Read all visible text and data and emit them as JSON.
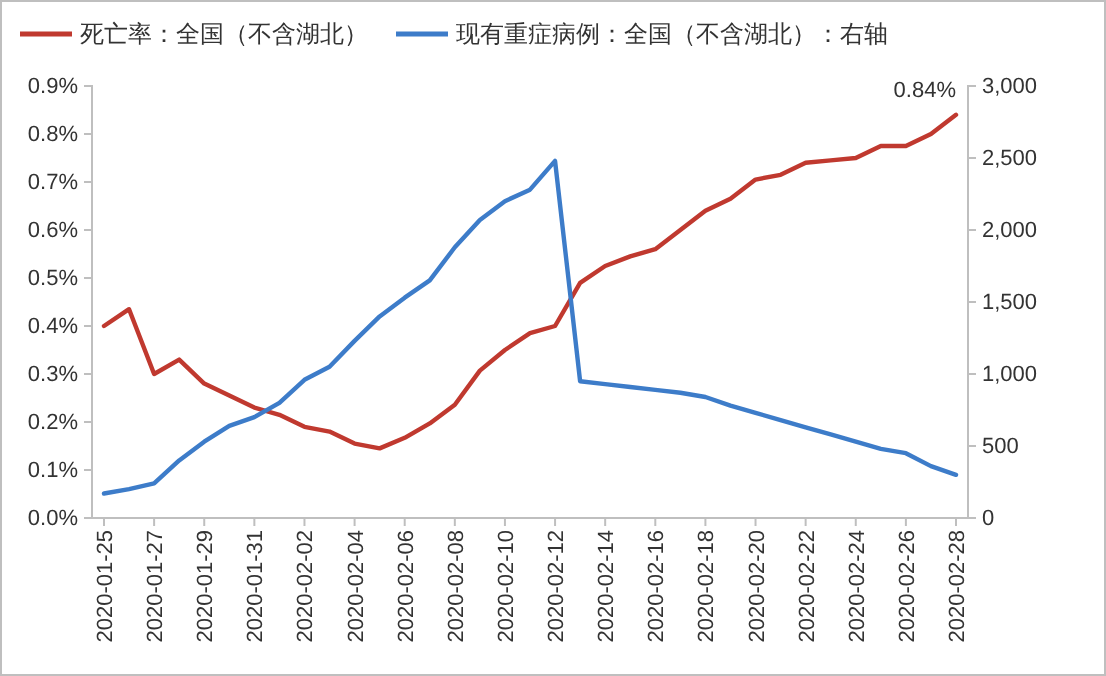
{
  "chart_data": {
    "type": "line",
    "categories": [
      "2020-01-25",
      null,
      "2020-01-27",
      null,
      "2020-01-29",
      null,
      "2020-01-31",
      null,
      "2020-02-02",
      null,
      "2020-02-04",
      null,
      "2020-02-06",
      null,
      "2020-02-08",
      null,
      "2020-02-10",
      null,
      "2020-02-12",
      null,
      "2020-02-14",
      null,
      "2020-02-16",
      null,
      "2020-02-18",
      null,
      "2020-02-20",
      null,
      "2020-02-22",
      null,
      "2020-02-24",
      null,
      "2020-02-26",
      null,
      "2020-02-28"
    ],
    "series": [
      {
        "name": "死亡率：全国（不含湖北）",
        "color": "#c0392f",
        "values": [
          0.4,
          0.435,
          0.3,
          0.33,
          0.28,
          0.255,
          0.23,
          0.215,
          0.19,
          0.18,
          0.155,
          0.145,
          0.167,
          0.197,
          0.236,
          0.307,
          0.35,
          0.385,
          0.4,
          0.49,
          0.525,
          0.545,
          0.56,
          0.6,
          0.64,
          0.665,
          0.705,
          0.715,
          0.74,
          0.745,
          0.75,
          0.775,
          0.775,
          0.8,
          0.84
        ]
      },
      {
        "name": "现有重症病例：全国（不含湖北）：右轴",
        "color": "#3d7cc9",
        "axis": "y2",
        "values": [
          170,
          200,
          240,
          400,
          530,
          640,
          700,
          800,
          960,
          1050,
          1230,
          1400,
          1530,
          1650,
          1880,
          2070,
          2200,
          2280,
          2480,
          950,
          930,
          910,
          890,
          870,
          840,
          780,
          730,
          680,
          630,
          580,
          530,
          480,
          450,
          360,
          300
        ]
      }
    ],
    "ylim": [
      0,
      0.9
    ],
    "yticks": [
      {
        "value": 0,
        "label": "0.0%"
      },
      {
        "value": 0.1,
        "label": "0.1%"
      },
      {
        "value": 0.2,
        "label": "0.2%"
      },
      {
        "value": 0.3,
        "label": "0.3%"
      },
      {
        "value": 0.4,
        "label": "0.4%"
      },
      {
        "value": 0.5,
        "label": "0.5%"
      },
      {
        "value": 0.6,
        "label": "0.6%"
      },
      {
        "value": 0.7,
        "label": "0.7%"
      },
      {
        "value": 0.8,
        "label": "0.8%"
      },
      {
        "value": 0.9,
        "label": "0.9%"
      }
    ],
    "y2lim": [
      0,
      3000
    ],
    "y2ticks": [
      {
        "value": 0,
        "label": "0"
      },
      {
        "value": 500,
        "label": "500"
      },
      {
        "value": 1000,
        "label": "1,000"
      },
      {
        "value": 1500,
        "label": "1,500"
      },
      {
        "value": 2000,
        "label": "2,000"
      },
      {
        "value": 2500,
        "label": "2,500"
      },
      {
        "value": 3000,
        "label": "3,000"
      }
    ],
    "annotations": [
      {
        "text": "0.84%",
        "x": "2020-02-28",
        "y": 0.84
      }
    ],
    "legend": "top",
    "grid": false
  }
}
